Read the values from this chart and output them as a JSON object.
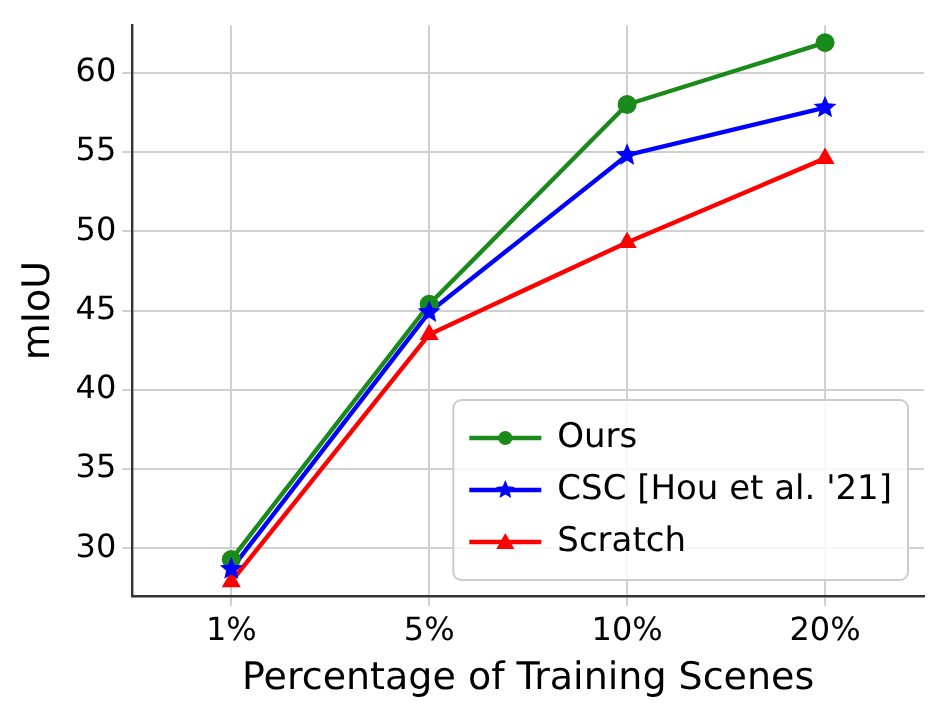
{
  "chart_data": {
    "type": "line",
    "xlabel": "Percentage of Training Scenes",
    "ylabel": "mIoU",
    "categories": [
      "1%",
      "5%",
      "10%",
      "20%"
    ],
    "series": [
      {
        "name": "Ours",
        "color": "#1a8a1a",
        "marker": "circle",
        "values": [
          29.3,
          45.4,
          58.0,
          61.9
        ]
      },
      {
        "name": "CSC [Hou et al. '21]",
        "color": "#0000ff",
        "marker": "star",
        "values": [
          28.7,
          44.9,
          54.8,
          57.8
        ]
      },
      {
        "name": "Scratch",
        "color": "#ff0000",
        "marker": "triangle",
        "values": [
          27.9,
          43.5,
          49.3,
          54.6
        ]
      }
    ],
    "ylim": [
      27,
      63
    ],
    "yticks": [
      30,
      35,
      40,
      45,
      50,
      55,
      60
    ],
    "grid": true,
    "legend": "bottom right",
    "line_style": "solid"
  }
}
